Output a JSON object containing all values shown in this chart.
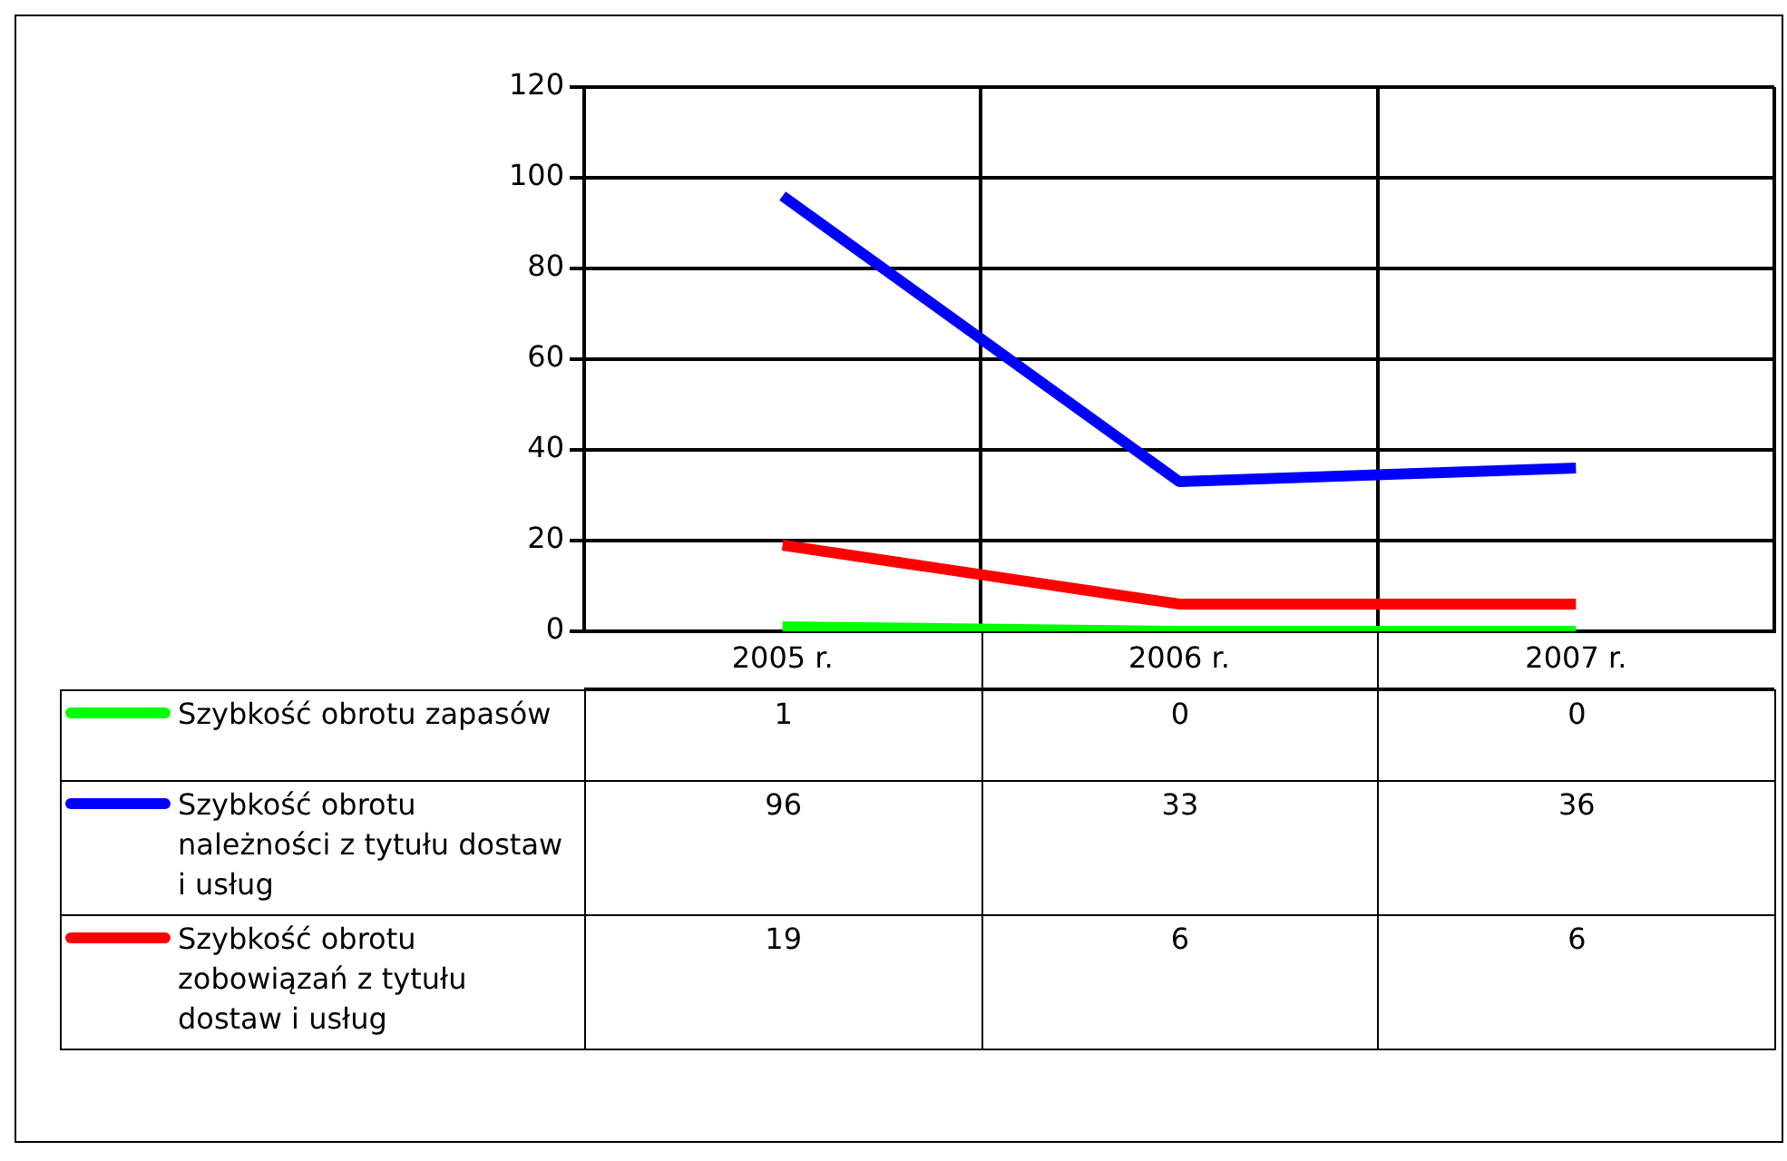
{
  "chart_data": {
    "type": "line",
    "categories": [
      "2005 r.",
      "2006 r.",
      "2007 r."
    ],
    "series": [
      {
        "name": "Szybkość obrotu zapasów",
        "color": "#00ff00",
        "values": [
          1,
          0,
          0
        ]
      },
      {
        "name": "Szybkość obrotu należności z tytułu dostaw i usług",
        "color": "#0000ff",
        "values": [
          96,
          33,
          36
        ]
      },
      {
        "name": "Szybkość obrotu zobowiązań z tytułu dostaw i usług",
        "color": "#ff0000",
        "values": [
          19,
          6,
          6
        ]
      }
    ],
    "ylim": [
      0,
      120
    ],
    "yticks": [
      0,
      20,
      40,
      60,
      80,
      100,
      120
    ],
    "grid": true,
    "legend": "bottom",
    "data_labels": true,
    "marker": "none",
    "line_style": "solid"
  }
}
